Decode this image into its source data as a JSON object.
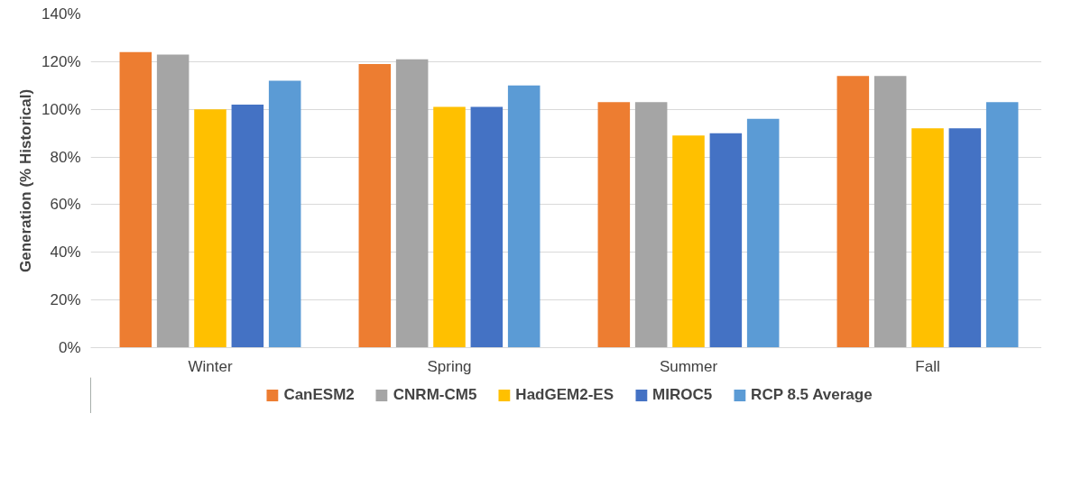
{
  "chart_data": {
    "type": "bar",
    "ylabel": "Generation (% Historical)",
    "categories": [
      "Winter",
      "Spring",
      "Summer",
      "Fall"
    ],
    "series": [
      {
        "name": "CanESM2",
        "color": "#ed7d31",
        "values": [
          124,
          119,
          103,
          114
        ]
      },
      {
        "name": "CNRM-CM5",
        "color": "#a5a5a5",
        "values": [
          123,
          121,
          103,
          114
        ]
      },
      {
        "name": "HadGEM2-ES",
        "color": "#ffc000",
        "values": [
          100,
          101,
          89,
          92
        ]
      },
      {
        "name": "MIROC5",
        "color": "#4472c4",
        "values": [
          102,
          101,
          90,
          92
        ]
      },
      {
        "name": "RCP 8.5 Average",
        "color": "#5b9bd5",
        "values": [
          112,
          110,
          96,
          103
        ]
      }
    ],
    "ylim": [
      0,
      140
    ],
    "yticks": [
      {
        "value": 0,
        "label": "0%"
      },
      {
        "value": 20,
        "label": "20%"
      },
      {
        "value": 40,
        "label": "40%"
      },
      {
        "value": 60,
        "label": "60%"
      },
      {
        "value": 80,
        "label": "80%"
      },
      {
        "value": 100,
        "label": "100%"
      },
      {
        "value": 120,
        "label": "120%"
      },
      {
        "value": 140,
        "label": "140%"
      }
    ],
    "grid": "y",
    "legend": "bottom"
  }
}
